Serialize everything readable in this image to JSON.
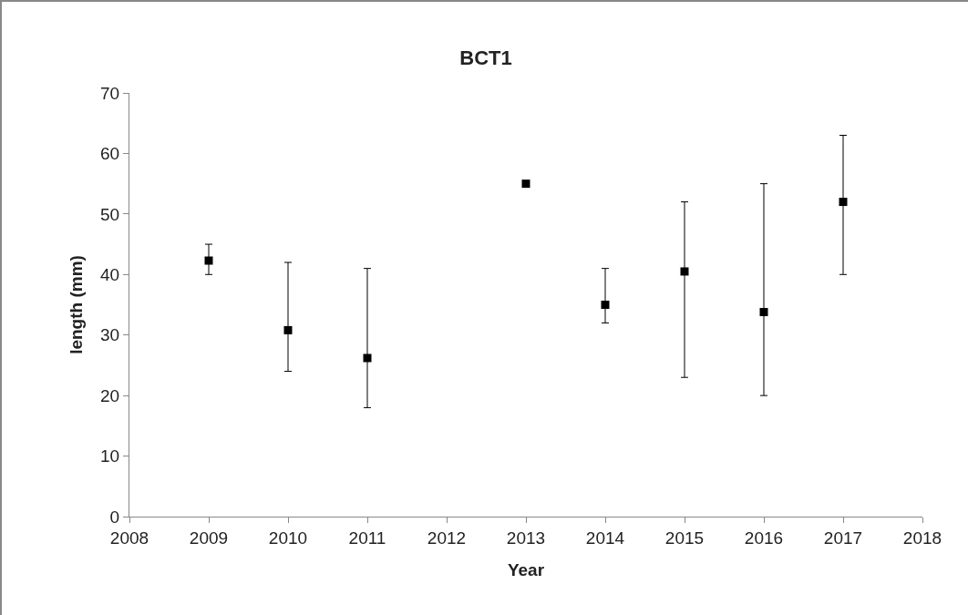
{
  "chart_data": {
    "type": "scatter",
    "title": "BCT1",
    "xlabel": "Year",
    "ylabel": "length (mm)",
    "x": [
      2009,
      2010,
      2011,
      2013,
      2014,
      2015,
      2016,
      2017
    ],
    "series": [
      {
        "color": "#000000",
        "values": [
          42.3,
          30.8,
          26.2,
          55,
          35,
          40.5,
          33.8,
          52
        ],
        "errors": [
          [
            40,
            45
          ],
          [
            24,
            42
          ],
          [
            18,
            41
          ],
          null,
          [
            32,
            41
          ],
          [
            23,
            52
          ],
          [
            20,
            55
          ],
          [
            40,
            63
          ]
        ]
      }
    ],
    "xlim": [
      2008,
      2018
    ],
    "xticks": [
      2008,
      2009,
      2010,
      2011,
      2012,
      2013,
      2014,
      2015,
      2016,
      2017,
      2018
    ],
    "ylim": [
      0,
      70
    ],
    "yticks": [
      0,
      10,
      20,
      30,
      40,
      50,
      60,
      70
    ],
    "grid": false,
    "marker": "square"
  }
}
